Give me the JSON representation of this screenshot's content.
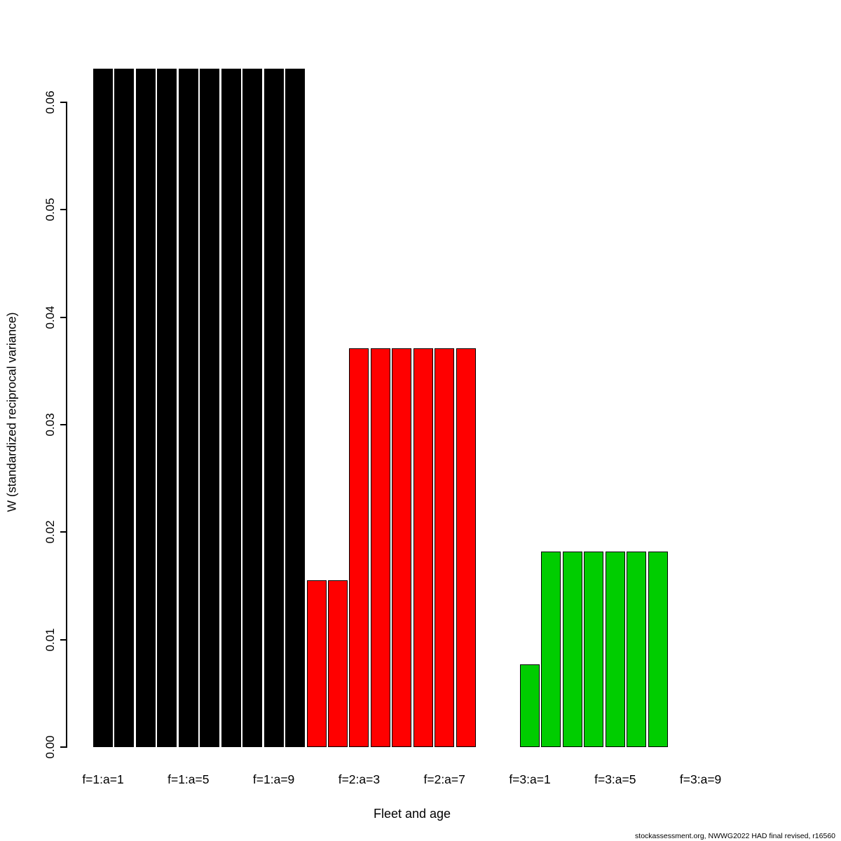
{
  "footer": {
    "text": "stockassessment.org, NWWG2022 HAD final revised, r16560"
  },
  "chart_data": {
    "type": "bar",
    "title": "",
    "xlabel": "Fleet and age",
    "ylabel": "W (standardized reciprocal variance)",
    "ylim": [
      0,
      0.0631
    ],
    "grid": false,
    "legend": "none",
    "yticks": [
      "0.00",
      "0.01",
      "0.02",
      "0.03",
      "0.04",
      "0.05",
      "0.06"
    ],
    "xticks": [
      {
        "slot": 0,
        "label": "f=1:a=1"
      },
      {
        "slot": 4,
        "label": "f=1:a=5"
      },
      {
        "slot": 8,
        "label": "f=1:a=9"
      },
      {
        "slot": 12,
        "label": "f=2:a=3"
      },
      {
        "slot": 16,
        "label": "f=2:a=7"
      },
      {
        "slot": 20,
        "label": "f=3:a=1"
      },
      {
        "slot": 24,
        "label": "f=3:a=5"
      },
      {
        "slot": 28,
        "label": "f=3:a=9"
      }
    ],
    "groups": [
      {
        "name": "fleet-1",
        "color": "#000000",
        "start_slot": 0,
        "ages": [
          1,
          2,
          3,
          4,
          5,
          6,
          7,
          8,
          9,
          10
        ],
        "values": [
          0.0631,
          0.0631,
          0.0631,
          0.0631,
          0.0631,
          0.0631,
          0.0631,
          0.0631,
          0.0631,
          0.0631
        ]
      },
      {
        "name": "fleet-2",
        "color": "#FF0000",
        "start_slot": 10,
        "ages": [
          1,
          2,
          3,
          4,
          5,
          6,
          7,
          8,
          9,
          10
        ],
        "values": [
          0.0155,
          0.0155,
          0.0371,
          0.0371,
          0.0371,
          0.0371,
          0.0371,
          0.0371,
          0,
          0
        ]
      },
      {
        "name": "fleet-3",
        "color": "#00CD00",
        "start_slot": 20,
        "ages": [
          1,
          2,
          3,
          4,
          5,
          6,
          7,
          8,
          9,
          10
        ],
        "values": [
          0.0077,
          0.0182,
          0.0182,
          0.0182,
          0.0182,
          0.0182,
          0.0182,
          0,
          0,
          0
        ]
      }
    ]
  }
}
